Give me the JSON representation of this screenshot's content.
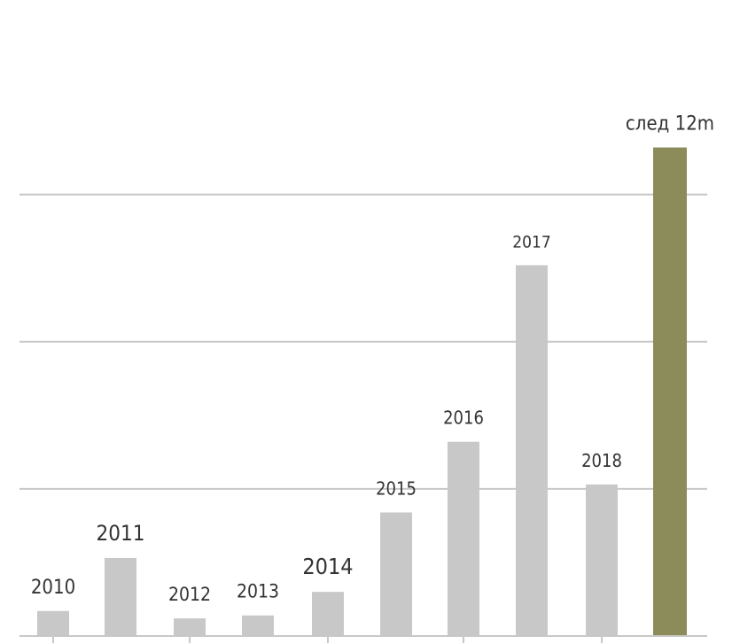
{
  "chart_data": {
    "type": "bar",
    "categories": [
      "2010",
      "2011",
      "2012",
      "2013",
      "2014",
      "2015",
      "2016",
      "2017",
      "2018",
      "след 12m"
    ],
    "values": [
      1.7,
      5.3,
      1.2,
      1.4,
      3.0,
      8.4,
      13.2,
      25.2,
      10.3,
      33.2
    ],
    "colors": [
      "#c8c8c8",
      "#c8c8c8",
      "#c8c8c8",
      "#c8c8c8",
      "#c8c8c8",
      "#c8c8c8",
      "#c8c8c8",
      "#c8c8c8",
      "#c8c8c8",
      "#8c8c5a"
    ],
    "ylim": [
      0,
      36
    ],
    "gridlines": [
      10,
      20,
      30
    ],
    "grid": true,
    "legend": false,
    "title": "",
    "xlabel": "",
    "ylabel": ""
  }
}
